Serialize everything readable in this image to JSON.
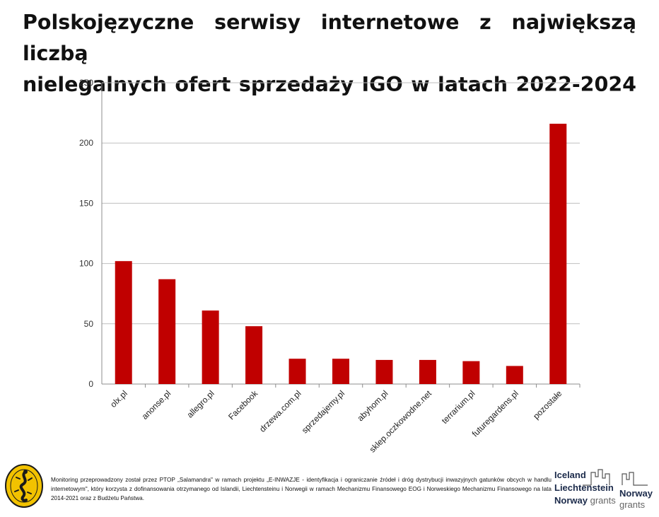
{
  "title_lines": [
    "Polskojęzyczne serwisy internetowe z największą liczbą",
    "nielegalnych ofert sprzedaży IGO   w latach 2022-2024"
  ],
  "chart_data": {
    "type": "bar",
    "title": "Polskojęzyczne serwisy internetowe z największą liczbą nielegalnych ofert sprzedaży IGO   w latach 2022-2024",
    "categories": [
      "olx.pl",
      "anonse.pl",
      "allegro.pl",
      "Facebook",
      "drzewa.com.pl",
      "sprzedajemy.pl",
      "abyhom.pl",
      "sklep.oczkowodne.net",
      "terrarium.pl",
      "futuregardens.pl",
      "pozostałe"
    ],
    "values": [
      102,
      87,
      61,
      48,
      21,
      21,
      20,
      20,
      19,
      15,
      216
    ],
    "ylim": [
      0,
      250
    ],
    "yticks": [
      0,
      50,
      100,
      150,
      200,
      250
    ],
    "xlabel": "",
    "ylabel": "",
    "grid": true,
    "bar_color": "#c00000"
  },
  "footer": {
    "text": "Monitoring przeprowadzony został przez PTOP „Salamandra\" w ramach projektu „E-INWAZJE - identyfikacja i ograniczanie źródeł i dróg dystrybucji inwazyjnych gatunków obcych w handlu internetowym\", który korzysta z dofinansowania otrzymanego od Islandii, Liechtensteinu i Norwegii  w ramach Mechanizmu Finansowego EOG i Norweskiego Mechanizmu Finansowego na lata 2014-2021 oraz z Budżetu Państwa.",
    "logo_left_text": "Polskie Towarzystwo Ochrony Przyrody SALAMANDRA",
    "grants_left": [
      "Iceland",
      "Liechtenstein",
      "Norway"
    ],
    "grants_left_suffix": "grants",
    "grants_right": [
      "Norway",
      "grants"
    ]
  }
}
